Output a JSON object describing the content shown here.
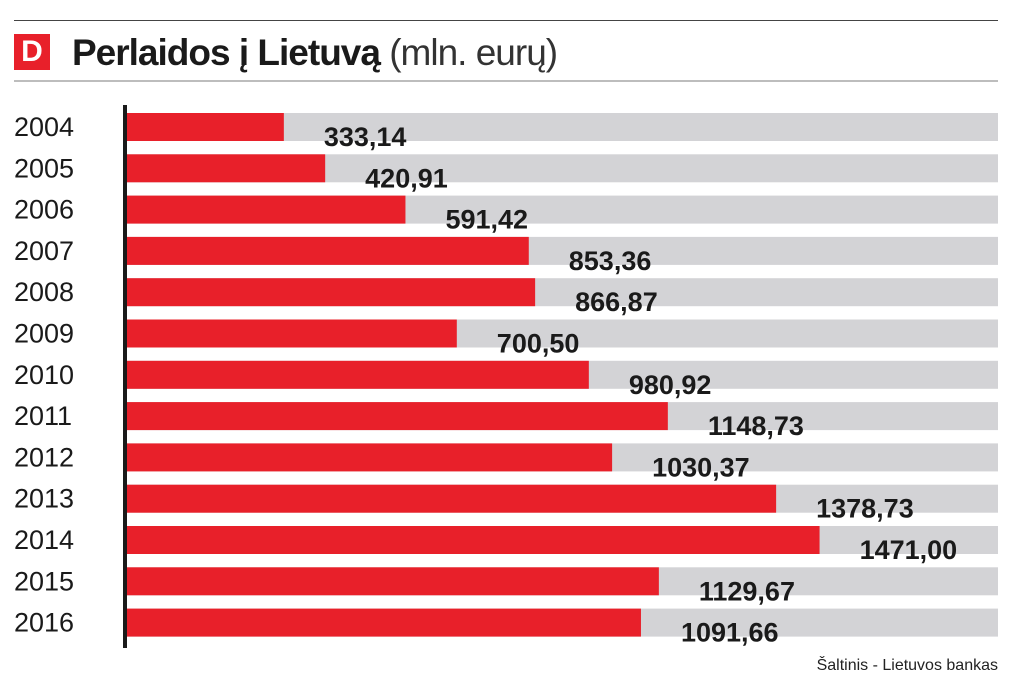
{
  "header": {
    "logo_letter": "D",
    "title_main": "Perlaidos į Lietuvą",
    "title_unit": "(mln. eurų)"
  },
  "colors": {
    "bar": "#e8202a",
    "track": "#d3d3d6",
    "text": "#1a1a1a",
    "logo": "#e8202a"
  },
  "chart_data": {
    "type": "bar",
    "orientation": "horizontal",
    "title": "Perlaidos į Lietuvą (mln. eurų)",
    "categories": [
      "2004",
      "2005",
      "2006",
      "2007",
      "2008",
      "2009",
      "2010",
      "2011",
      "2012",
      "2013",
      "2014",
      "2015",
      "2016"
    ],
    "values": [
      333.14,
      420.91,
      591.42,
      853.36,
      866.87,
      700.5,
      980.92,
      1148.73,
      1030.37,
      1378.73,
      1471.0,
      1129.67,
      1091.66
    ],
    "labels": [
      "333,14",
      "420,91",
      "591,42",
      "853,36",
      "866,87",
      "700,50",
      "980,92",
      "1148,73",
      "1030,37",
      "1378,73",
      "1471,00",
      "1129,67",
      "1091,66"
    ],
    "xlim": [
      0,
      1850
    ],
    "grid": false,
    "legend": false
  },
  "footer": {
    "source": "Šaltinis - Lietuvos bankas"
  }
}
